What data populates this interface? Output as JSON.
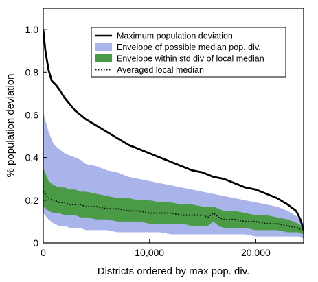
{
  "chart_data": {
    "type": "area",
    "xlabel": "Districts ordered by max pop. div.",
    "ylabel": "% population deviation",
    "xlim": [
      0,
      24500
    ],
    "ylim": [
      0,
      1.1
    ],
    "x_ticks": [
      0,
      10000,
      20000
    ],
    "x_tick_labels": [
      "0",
      "10,000",
      "20,000"
    ],
    "y_ticks": [
      0,
      0.2,
      0.4,
      0.6,
      0.8,
      1.0
    ],
    "y_tick_labels": [
      "0",
      "0.2",
      "0.4",
      "0.6",
      "0.8",
      "1.0"
    ],
    "grid": false,
    "legend_position": "top-right",
    "series": [
      {
        "name": "Envelope of possible median pop. div.",
        "kind": "band",
        "color": "#a9b4ea",
        "x": [
          0,
          500,
          1000,
          1500,
          2000,
          2500,
          3000,
          3500,
          4000,
          5000,
          6000,
          7000,
          8000,
          9000,
          10000,
          11000,
          12000,
          13000,
          14000,
          15000,
          16000,
          17000,
          18000,
          19000,
          20000,
          21000,
          22000,
          23000,
          24000,
          24500
        ],
        "upper": [
          0.61,
          0.52,
          0.46,
          0.44,
          0.42,
          0.41,
          0.4,
          0.39,
          0.37,
          0.36,
          0.34,
          0.33,
          0.31,
          0.3,
          0.29,
          0.28,
          0.27,
          0.26,
          0.25,
          0.24,
          0.23,
          0.22,
          0.21,
          0.2,
          0.19,
          0.18,
          0.17,
          0.15,
          0.12,
          0.09
        ],
        "lower": [
          0.14,
          0.11,
          0.09,
          0.08,
          0.08,
          0.07,
          0.07,
          0.07,
          0.06,
          0.06,
          0.06,
          0.05,
          0.05,
          0.05,
          0.05,
          0.05,
          0.04,
          0.04,
          0.04,
          0.04,
          0.04,
          0.04,
          0.04,
          0.04,
          0.03,
          0.03,
          0.03,
          0.03,
          0.03,
          0.02
        ]
      },
      {
        "name": "Envelope within std div of local median",
        "kind": "band",
        "color": "#4b9a45",
        "x": [
          0,
          500,
          1000,
          1500,
          2000,
          2500,
          3000,
          3500,
          4000,
          5000,
          6000,
          7000,
          8000,
          9000,
          10000,
          11000,
          12000,
          13000,
          14000,
          15000,
          15500,
          16000,
          16500,
          17000,
          18000,
          19000,
          20000,
          21000,
          22000,
          23000,
          24000,
          24500
        ],
        "upper": [
          0.35,
          0.29,
          0.27,
          0.26,
          0.26,
          0.25,
          0.25,
          0.24,
          0.24,
          0.23,
          0.22,
          0.21,
          0.21,
          0.2,
          0.2,
          0.19,
          0.19,
          0.18,
          0.18,
          0.17,
          0.17,
          0.17,
          0.16,
          0.15,
          0.15,
          0.14,
          0.13,
          0.13,
          0.12,
          0.11,
          0.09,
          0.07
        ],
        "lower": [
          0.17,
          0.15,
          0.14,
          0.14,
          0.13,
          0.13,
          0.13,
          0.12,
          0.12,
          0.11,
          0.11,
          0.1,
          0.1,
          0.1,
          0.09,
          0.09,
          0.09,
          0.09,
          0.08,
          0.08,
          0.08,
          0.1,
          0.08,
          0.07,
          0.07,
          0.07,
          0.06,
          0.06,
          0.06,
          0.05,
          0.05,
          0.04
        ]
      },
      {
        "name": "Maximum population deviation",
        "kind": "line",
        "color": "#000000",
        "x": [
          0,
          200,
          500,
          800,
          1200,
          1500,
          2000,
          2500,
          3000,
          3500,
          4000,
          5000,
          6000,
          7000,
          8000,
          9000,
          10000,
          11000,
          12000,
          13000,
          14000,
          15000,
          16000,
          17000,
          18000,
          19000,
          20000,
          21000,
          22000,
          23000,
          23800,
          24200,
          24500
        ],
        "y": [
          1.0,
          0.9,
          0.81,
          0.76,
          0.74,
          0.72,
          0.68,
          0.65,
          0.62,
          0.6,
          0.58,
          0.55,
          0.52,
          0.49,
          0.46,
          0.44,
          0.42,
          0.4,
          0.38,
          0.36,
          0.34,
          0.33,
          0.31,
          0.3,
          0.28,
          0.26,
          0.25,
          0.23,
          0.21,
          0.18,
          0.15,
          0.11,
          0.06
        ]
      },
      {
        "name": "Averaged local median",
        "kind": "dotted-line",
        "color": "#000000",
        "x": [
          0,
          500,
          1000,
          1500,
          2000,
          2500,
          3000,
          3500,
          4000,
          5000,
          6000,
          7000,
          8000,
          9000,
          10000,
          11000,
          12000,
          13000,
          14000,
          15000,
          15500,
          16000,
          16500,
          17000,
          18000,
          19000,
          20000,
          21000,
          22000,
          23000,
          24000,
          24500
        ],
        "y": [
          0.24,
          0.21,
          0.2,
          0.19,
          0.19,
          0.18,
          0.18,
          0.18,
          0.17,
          0.17,
          0.16,
          0.16,
          0.15,
          0.15,
          0.14,
          0.14,
          0.14,
          0.13,
          0.13,
          0.13,
          0.12,
          0.14,
          0.12,
          0.11,
          0.11,
          0.1,
          0.1,
          0.09,
          0.09,
          0.08,
          0.07,
          0.05
        ]
      }
    ],
    "legend": [
      {
        "label": "Maximum population deviation",
        "symbol": "line",
        "color": "#000000"
      },
      {
        "label": "Envelope of possible median pop. div.",
        "symbol": "patch",
        "color": "#a9b4ea"
      },
      {
        "label": "Envelope within std div of local median",
        "symbol": "patch",
        "color": "#4b9a45"
      },
      {
        "label": "Averaged local median",
        "symbol": "dotted",
        "color": "#000000"
      }
    ]
  }
}
